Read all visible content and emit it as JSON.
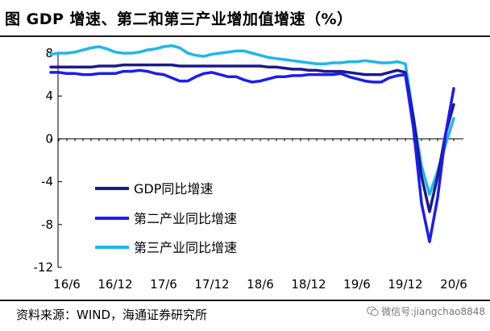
{
  "header": {
    "title": "图    GDP 增速、第二和第三产业增加值增速（%）"
  },
  "source_text": "资料来源：WIND，海通证券研究所",
  "watermark": {
    "icon": "wechat-icon",
    "text": "微信号:jiangchao8848"
  },
  "colors": {
    "gdp": "#1a1a8c",
    "secondary": "#1c1cf0",
    "tertiary": "#1fb6ea",
    "axis": "#000000"
  },
  "chart_data": {
    "type": "line",
    "title": "",
    "xlabel": "",
    "ylabel": "",
    "ylim": [
      -12,
      8
    ],
    "yticks": [
      8,
      4,
      0,
      -4,
      -8,
      -12
    ],
    "ytick_labels": [
      "8",
      "4",
      "0",
      "-4",
      "-8",
      "-12"
    ],
    "xtick_labels": [
      "16/6",
      "16/12",
      "17/6",
      "17/12",
      "18/6",
      "18/12",
      "19/6",
      "19/12",
      "20/6"
    ],
    "xtick_index": [
      2,
      8,
      14,
      20,
      26,
      32,
      38,
      44,
      50
    ],
    "legend_position": "lower-left",
    "x": [
      "2016-04",
      "2016-05",
      "2016-06",
      "2016-07",
      "2016-08",
      "2016-09",
      "2016-10",
      "2016-11",
      "2016-12",
      "2017-01",
      "2017-02",
      "2017-03",
      "2017-04",
      "2017-05",
      "2017-06",
      "2017-07",
      "2017-08",
      "2017-09",
      "2017-10",
      "2017-11",
      "2017-12",
      "2018-01",
      "2018-02",
      "2018-03",
      "2018-04",
      "2018-05",
      "2018-06",
      "2018-07",
      "2018-08",
      "2018-09",
      "2018-10",
      "2018-11",
      "2018-12",
      "2019-01",
      "2019-02",
      "2019-03",
      "2019-04",
      "2019-05",
      "2019-06",
      "2019-07",
      "2019-08",
      "2019-09",
      "2019-10",
      "2019-11",
      "2019-12",
      "2020-01",
      "2020-02",
      "2020-03",
      "2020-04",
      "2020-05",
      "2020-06"
    ],
    "series": [
      {
        "name": "GDP同比增速",
        "values": [
          6.7,
          6.7,
          6.7,
          6.7,
          6.7,
          6.7,
          6.8,
          6.8,
          6.8,
          6.9,
          6.9,
          6.9,
          6.9,
          6.9,
          6.9,
          6.9,
          6.8,
          6.8,
          6.8,
          6.8,
          6.8,
          6.8,
          6.8,
          6.8,
          6.8,
          6.8,
          6.8,
          6.7,
          6.7,
          6.6,
          6.5,
          6.5,
          6.4,
          6.4,
          6.3,
          6.3,
          6.3,
          6.2,
          6.1,
          6.0,
          6.0,
          6.0,
          6.2,
          6.4,
          6.2,
          2.0,
          -3.5,
          -6.8,
          -3.5,
          0.5,
          3.2
        ]
      },
      {
        "name": "第二产业同比增速",
        "values": [
          6.2,
          6.2,
          6.1,
          6.1,
          6.0,
          6.0,
          6.1,
          6.1,
          6.1,
          6.3,
          6.3,
          6.4,
          6.3,
          6.1,
          6.0,
          5.7,
          5.4,
          5.4,
          5.8,
          6.1,
          6.2,
          6.0,
          5.8,
          5.8,
          5.5,
          5.3,
          5.4,
          5.6,
          5.8,
          5.8,
          5.9,
          5.9,
          6.0,
          6.0,
          6.0,
          6.0,
          6.1,
          5.8,
          5.6,
          5.4,
          5.3,
          5.3,
          5.7,
          5.9,
          6.0,
          1.0,
          -6.0,
          -9.6,
          -5.5,
          0.5,
          4.7
        ]
      },
      {
        "name": "第三产业同比增速",
        "values": [
          7.9,
          8.0,
          8.0,
          8.1,
          8.3,
          8.5,
          8.6,
          8.4,
          8.1,
          8.0,
          8.0,
          8.1,
          8.3,
          8.4,
          8.6,
          8.7,
          8.5,
          8.0,
          7.8,
          7.7,
          7.9,
          8.0,
          8.1,
          8.2,
          8.2,
          8.0,
          7.8,
          7.6,
          7.5,
          7.4,
          7.3,
          7.2,
          7.1,
          7.0,
          7.0,
          7.1,
          7.1,
          7.2,
          7.2,
          7.3,
          7.2,
          7.1,
          7.1,
          7.2,
          7.0,
          2.0,
          -2.5,
          -5.2,
          -3.0,
          -0.5,
          1.9
        ]
      }
    ]
  }
}
